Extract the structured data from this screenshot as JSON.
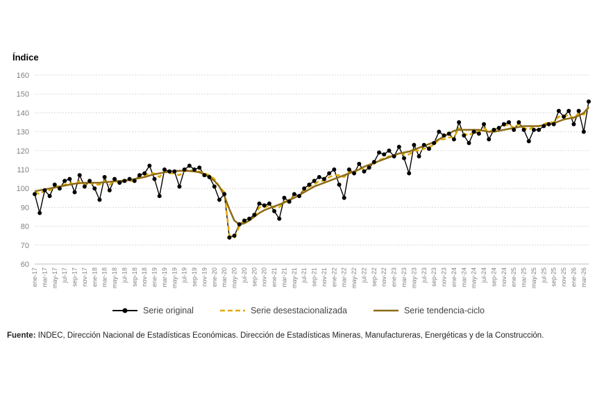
{
  "chart_data": {
    "type": "line",
    "ylabel": "Índice",
    "xlabel": "",
    "ylim": [
      60,
      160
    ],
    "yticks": [
      60,
      70,
      80,
      90,
      100,
      110,
      120,
      130,
      140,
      150,
      160
    ],
    "grid": true,
    "legend_position": "bottom",
    "x_tick_labels": [
      "ene-17",
      "mar-17",
      "may-17",
      "jul-17",
      "sep-17",
      "nov-17",
      "ene-18",
      "mar-18",
      "may-18",
      "jul-18",
      "sep-18",
      "nov-18",
      "ene-19",
      "mar-19",
      "may-19",
      "jul-19",
      "sep-19",
      "nov-19",
      "ene-20",
      "mar-20",
      "may-20",
      "jul-20",
      "sep-20",
      "nov-20",
      "ene-21",
      "mar-21",
      "may-21",
      "jul-21",
      "sep-21",
      "nov-21",
      "ene-22",
      "mar-22",
      "may-22",
      "jul-22",
      "sep-22",
      "nov-22",
      "ene-23",
      "mar-23",
      "may-23",
      "jul-23",
      "sep-23",
      "nov-23",
      "ene-24",
      "mar-24",
      "may-24",
      "jul-24",
      "sep-24",
      "nov-24",
      "ene-25",
      "mar-25",
      "may-25",
      "jul-25",
      "sep-25",
      "nov-25",
      "ene-26",
      "mar-26"
    ],
    "series": [
      {
        "name": "Serie original",
        "color": "#000000",
        "style": "solid-markers",
        "values": [
          97,
          87,
          99,
          96,
          102,
          100,
          104,
          105,
          98,
          107,
          101,
          104,
          100,
          94,
          106,
          99,
          105,
          103,
          104,
          105,
          104,
          107,
          108,
          112,
          105,
          96,
          110,
          109,
          109,
          101,
          110,
          112,
          110,
          111,
          107,
          106,
          101,
          94,
          97,
          74,
          75,
          81,
          83,
          84,
          86,
          92,
          91,
          92,
          88,
          84,
          95,
          93,
          97,
          96,
          100,
          102,
          104,
          106,
          105,
          108,
          110,
          102,
          95,
          110,
          108,
          113,
          109,
          111,
          114,
          119,
          118,
          120,
          117,
          122,
          116,
          108,
          123,
          117,
          123,
          121,
          124,
          130,
          128,
          129,
          126,
          135,
          128,
          124,
          130,
          129,
          134,
          126,
          131,
          132,
          134,
          135,
          131,
          135,
          131,
          125,
          131,
          131,
          133,
          134,
          134,
          141,
          138,
          141,
          134,
          141,
          130,
          146
        ]
      },
      {
        "name": "Serie desestacionalizada",
        "color": "#e0a800",
        "style": "dashed",
        "values": [
          98,
          97,
          99,
          99,
          101,
          101,
          102,
          103,
          102,
          104,
          102,
          103,
          102,
          102,
          104,
          102,
          104,
          103,
          104,
          104,
          104,
          106,
          107,
          108,
          108,
          106,
          109,
          108,
          108,
          107,
          109,
          110,
          109,
          109,
          108,
          107,
          105,
          101,
          98,
          75,
          74,
          80,
          83,
          84,
          85,
          90,
          90,
          91,
          90,
          90,
          93,
          93,
          96,
          96,
          99,
          101,
          102,
          104,
          104,
          106,
          107,
          107,
          106,
          109,
          108,
          111,
          110,
          111,
          113,
          115,
          116,
          117,
          117,
          119,
          118,
          118,
          120,
          120,
          121,
          122,
          123,
          126,
          126,
          127,
          127,
          132,
          129,
          128,
          130,
          130,
          132,
          130,
          131,
          132,
          133,
          134,
          132,
          134,
          132,
          131,
          133,
          133,
          134,
          135,
          135,
          138,
          138,
          139,
          137,
          140,
          139,
          143
        ]
      },
      {
        "name": "Serie tendencia-ciclo",
        "color": "#8b6b16",
        "style": "solid",
        "values": [
          98.5,
          99,
          99.5,
          100,
          100.5,
          101,
          101.5,
          102,
          102.5,
          102.8,
          103,
          103,
          103,
          103,
          103.3,
          103.5,
          103.8,
          104,
          104.2,
          104.5,
          105,
          105.5,
          106,
          106.8,
          107.5,
          108,
          108.5,
          109,
          109.2,
          109.3,
          109.3,
          109.2,
          109,
          108.5,
          107.5,
          106,
          104,
          101,
          96,
          89,
          83,
          81,
          81.5,
          83,
          85,
          87,
          88.5,
          89.5,
          90.5,
          91.5,
          92.5,
          94,
          95,
          96.5,
          98,
          99.5,
          101,
          102,
          103,
          104,
          105,
          106,
          107,
          108,
          109,
          110,
          111.5,
          112.5,
          113.5,
          114.5,
          115.5,
          116.5,
          117.5,
          118.5,
          119,
          119.5,
          120.5,
          121.5,
          122.5,
          123.5,
          124.5,
          126,
          127.5,
          129,
          130.5,
          131,
          131,
          131,
          131,
          131,
          130.5,
          130,
          130,
          130.5,
          131,
          131.5,
          132,
          132.5,
          133,
          133,
          133,
          133,
          133.5,
          134,
          134.5,
          135.5,
          136.5,
          137,
          137.5,
          138.5,
          140,
          143
        ]
      }
    ]
  },
  "legend": [
    {
      "label": "Serie original"
    },
    {
      "label": "Serie desestacionalizada"
    },
    {
      "label": "Serie tendencia-ciclo"
    }
  ],
  "source": {
    "prefix": "Fuente:",
    "text": " INDEC, Dirección Nacional de Estadísticas Económicas. Dirección de Estadísticas Mineras, Manufactureras, Energéticas y de la Construcción."
  }
}
